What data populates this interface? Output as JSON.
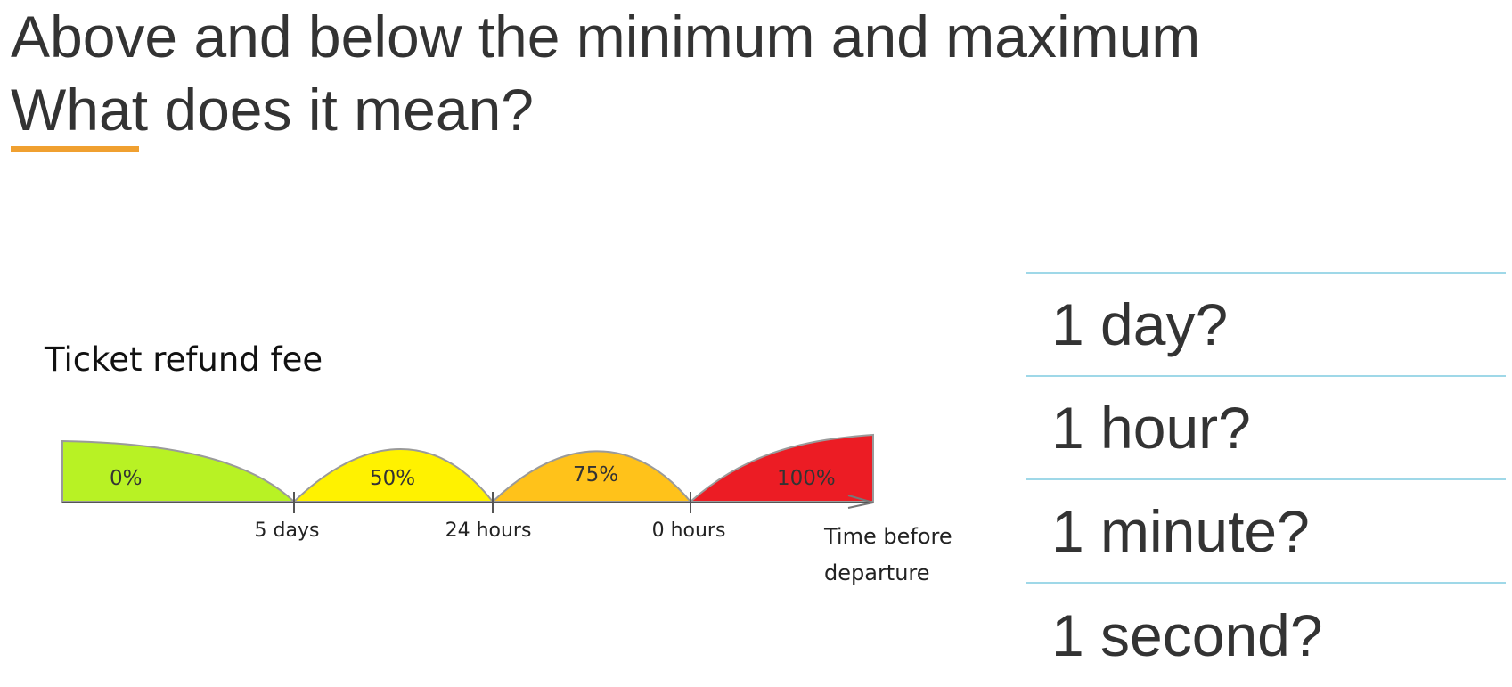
{
  "title": {
    "line1": "Above and below the minimum and maximum",
    "line2": "What does it mean?"
  },
  "colors": {
    "accent": "#f0a030",
    "divider": "#9fd8e8",
    "text": "#333333"
  },
  "diagram": {
    "title": "Ticket refund fee",
    "segments": [
      {
        "label": "0%",
        "color": "#b8f224"
      },
      {
        "label": "50%",
        "color": "#fff200"
      },
      {
        "label": "75%",
        "color": "#ffc21a"
      },
      {
        "label": "100%",
        "color": "#ec1c24"
      }
    ],
    "ticks": [
      "5 days",
      "24 hours",
      "0 hours"
    ],
    "axis_label_lines": [
      "Time before",
      "departure"
    ]
  },
  "questions": [
    "1 day?",
    "1 hour?",
    "1 minute?",
    "1 second?"
  ]
}
